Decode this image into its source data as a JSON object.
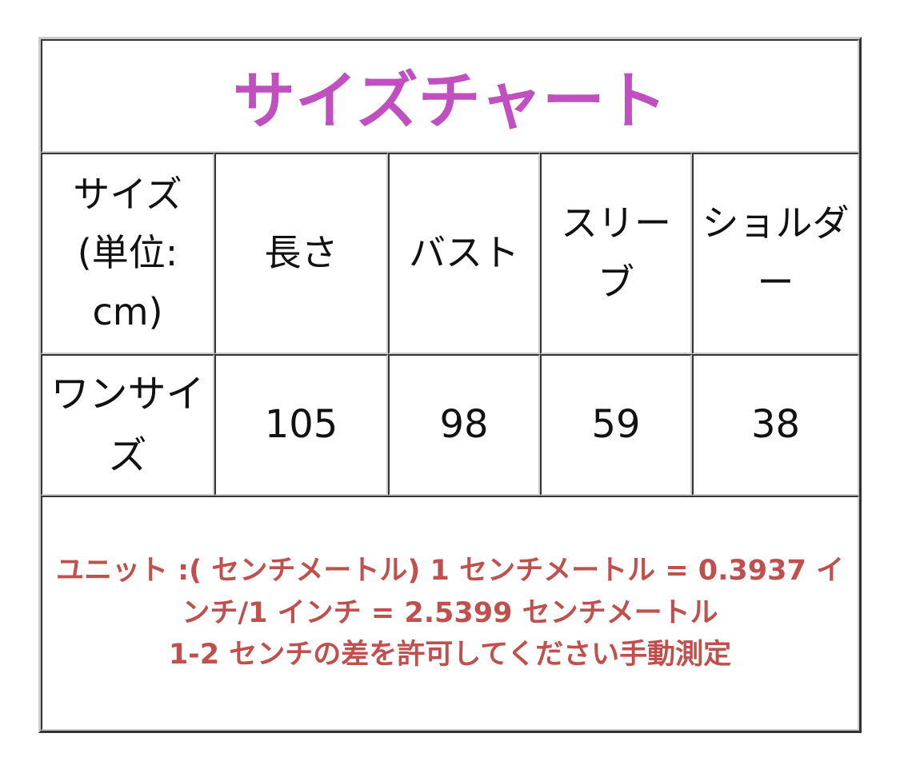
{
  "title": "サイズチャート",
  "colors": {
    "title": "#c04fc0",
    "notes": "#c0504d",
    "text": "#111111"
  },
  "headers": [
    "サイズ (単位: cm)",
    "長さ",
    "バスト",
    "スリーブ",
    "ショルダー"
  ],
  "rows": [
    [
      "ワンサイズ",
      "105",
      "98",
      "59",
      "38"
    ]
  ],
  "notes": [
    "ユニット :( センチメートル) 1 センチメートル = 0.3937 インチ/1 インチ = 2.5399 センチメートル",
    "1-2 センチの差を許可してください手動測定"
  ]
}
